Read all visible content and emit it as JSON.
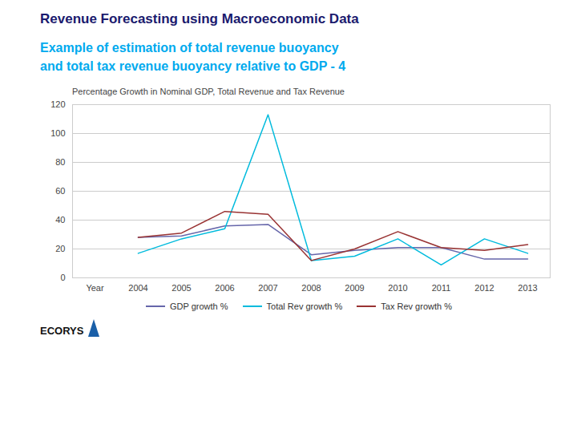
{
  "chart_data": {
    "type": "line",
    "title": "Revenue Forecasting using Macroeconomic Data",
    "subtitle": [
      "Example of estimation of total revenue buoyancy",
      "and total tax revenue buoyancy relative to GDP - 4"
    ],
    "plot_title": "Percentage Growth in Nominal GDP, Total Revenue and Tax Revenue",
    "caption": "ECORYS",
    "categories": [
      "Year",
      "2004",
      "2005",
      "2006",
      "2007",
      "2008",
      "2009",
      "2010",
      "2011",
      "2012",
      "2013"
    ],
    "series": [
      {
        "name": "GDP growth %",
        "color": "#6666aa",
        "values": [
          null,
          28,
          29,
          36,
          37,
          16,
          19,
          21,
          21,
          13,
          13
        ]
      },
      {
        "name": "Total Rev growth %",
        "color": "#00bbdd",
        "values": [
          null,
          17,
          27,
          34,
          113,
          12,
          15,
          27,
          9,
          27,
          17
        ]
      },
      {
        "name": "Tax Rev growth %",
        "color": "#993333",
        "values": [
          null,
          28,
          31,
          46,
          44,
          12,
          20,
          32,
          21,
          19,
          23
        ]
      }
    ],
    "ylim": [
      0,
      120
    ],
    "yticks": [
      0,
      20,
      40,
      60,
      80,
      100,
      120
    ],
    "grid": true,
    "legend": "bottom"
  }
}
